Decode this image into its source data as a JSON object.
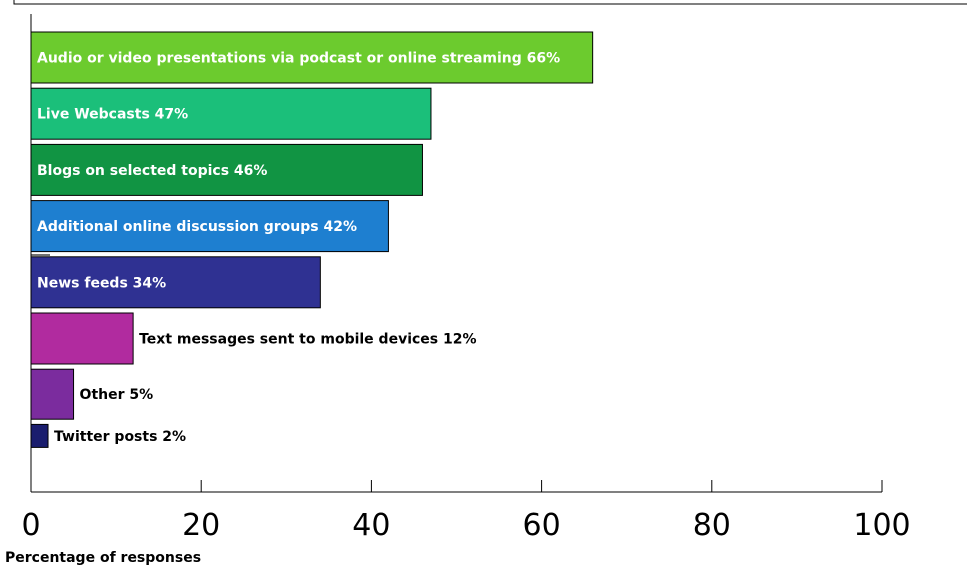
{
  "chart_data": {
    "type": "bar",
    "orientation": "horizontal",
    "title": "",
    "xlabel": "Percentage of responses",
    "ylabel": "",
    "xlim": [
      0,
      100
    ],
    "xticks": [
      0,
      20,
      40,
      60,
      80,
      100
    ],
    "grid": false,
    "categories": [
      "Audio or video presentations via podcast or online streaming 66%",
      "Live Webcasts 47%",
      "Blogs on selected topics 46%",
      "Additional online discussion groups 42%",
      "News feeds 34%",
      "Text messages sent to mobile devices 12%",
      "Other 5%",
      "Twitter posts 2%"
    ],
    "values": [
      66,
      47,
      46,
      42,
      34,
      12,
      5,
      2
    ],
    "colors": [
      "#6ccb2e",
      "#1bbf7a",
      "#119443",
      "#1e7fd0",
      "#2f3192",
      "#b12b9f",
      "#7b2c9e",
      "#1a1d6e"
    ],
    "label_inside": [
      true,
      true,
      true,
      true,
      true,
      false,
      false,
      false
    ]
  }
}
